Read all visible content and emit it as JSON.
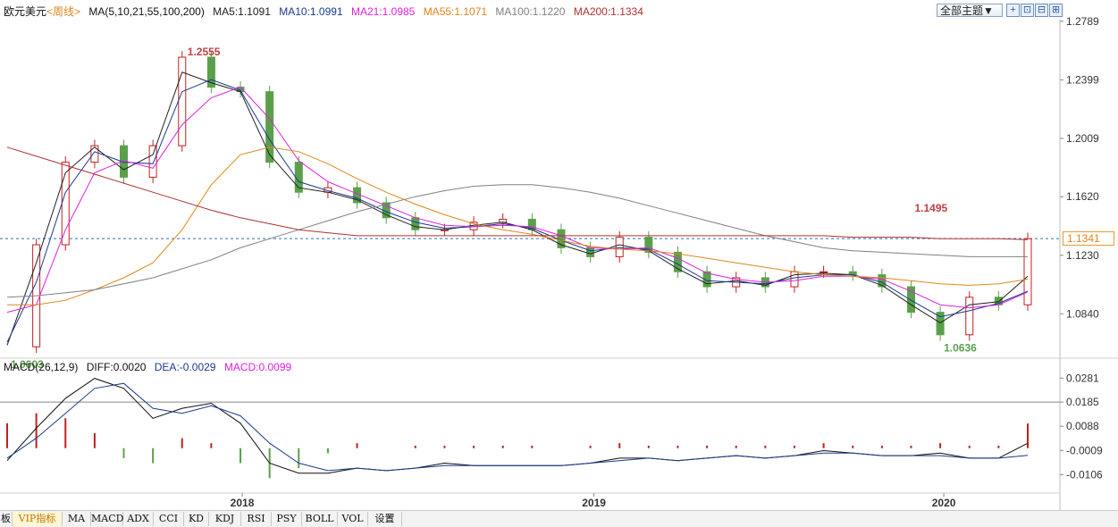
{
  "header": {
    "symbol": "欧元美元",
    "period": "<周线>",
    "ma_params": "MA(5,10,21,55,100,200)",
    "ma5": "MA5:1.1091",
    "ma10": "MA10:1.0991",
    "ma21": "MA21:1.0985",
    "ma55": "MA55:1.1071",
    "ma100": "MA100:1.1220",
    "ma200": "MA200:1.1334"
  },
  "colors": {
    "ma5": "#222222",
    "ma10": "#1a3a8f",
    "ma21": "#e020e0",
    "ma55": "#e0861a",
    "ma100": "#808080",
    "ma200": "#b23030",
    "up": "#c02020",
    "down": "#5aa04a",
    "current": "#2a6fb8"
  },
  "toolbar": {
    "theme_label": "全部主题▼",
    "btn_plus": "+",
    "btn_a": "⊡",
    "btn_b": "⊟",
    "btn_c": "⊞"
  },
  "price_axis": {
    "ticks": [
      "1.2789",
      "1.2399",
      "1.2009",
      "1.1620",
      "1.1230",
      "1.0840"
    ],
    "current": "1.1341"
  },
  "macd_axis": {
    "ticks": [
      "0.0281",
      "0.0185",
      "0.0088",
      "-0.0009",
      "-0.0106"
    ]
  },
  "macd_header": {
    "params": "MACD(26,12,9)",
    "diff": "DIFF:0.0020",
    "dea": "DEA:-0.0029",
    "macd": "MACD:0.0099"
  },
  "annotations": {
    "high": "1.2555",
    "low": "1.0603",
    "peak2": "1.1495",
    "low2": "1.0636"
  },
  "time_axis": [
    "2018",
    "2019",
    "2020"
  ],
  "bottom_tabs": [
    "板",
    "VIP指标",
    "MA",
    "MACD",
    "ADX",
    "CCI",
    "KD",
    "KDJ",
    "RSI",
    "PSY",
    "BOLL",
    "VOL",
    "设置"
  ],
  "chart_data": {
    "type": "line",
    "title": "欧元美元<周线>",
    "ylim": [
      1.055,
      1.28
    ],
    "current_price": 1.1341,
    "x": [
      0,
      5,
      10,
      15,
      20,
      25,
      30,
      35,
      40,
      45,
      50,
      55,
      60,
      65,
      70,
      75,
      80,
      85,
      90,
      95,
      100,
      105,
      110,
      115,
      120,
      125,
      130,
      135,
      140,
      145,
      150,
      155,
      160,
      165,
      170,
      175
    ],
    "close": [
      1.062,
      1.13,
      1.185,
      1.196,
      1.175,
      1.196,
      1.255,
      1.235,
      1.232,
      1.185,
      1.165,
      1.168,
      1.158,
      1.148,
      1.14,
      1.14,
      1.145,
      1.147,
      1.14,
      1.128,
      1.122,
      1.135,
      1.125,
      1.112,
      1.102,
      1.108,
      1.102,
      1.112,
      1.112,
      1.11,
      1.102,
      1.085,
      1.07,
      1.095,
      1.09,
      1.134
    ],
    "series": [
      {
        "name": "MA5",
        "values": [
          1.063,
          1.118,
          1.178,
          1.195,
          1.18,
          1.19,
          1.245,
          1.238,
          1.232,
          1.19,
          1.168,
          1.165,
          1.16,
          1.15,
          1.142,
          1.14,
          1.143,
          1.145,
          1.14,
          1.13,
          1.124,
          1.13,
          1.126,
          1.114,
          1.104,
          1.106,
          1.103,
          1.11,
          1.111,
          1.11,
          1.103,
          1.09,
          1.078,
          1.09,
          1.092,
          1.109
        ]
      },
      {
        "name": "MA10",
        "values": [
          1.065,
          1.105,
          1.165,
          1.192,
          1.185,
          1.184,
          1.232,
          1.24,
          1.233,
          1.2,
          1.172,
          1.166,
          1.161,
          1.152,
          1.145,
          1.141,
          1.142,
          1.144,
          1.141,
          1.133,
          1.126,
          1.128,
          1.127,
          1.117,
          1.106,
          1.105,
          1.104,
          1.108,
          1.11,
          1.11,
          1.105,
          1.093,
          1.082,
          1.086,
          1.091,
          1.099
        ]
      },
      {
        "name": "MA21",
        "values": [
          1.085,
          1.09,
          1.14,
          1.178,
          1.186,
          1.181,
          1.21,
          1.228,
          1.235,
          1.214,
          1.186,
          1.172,
          1.164,
          1.156,
          1.148,
          1.143,
          1.142,
          1.143,
          1.142,
          1.136,
          1.128,
          1.127,
          1.128,
          1.121,
          1.111,
          1.107,
          1.105,
          1.106,
          1.109,
          1.109,
          1.107,
          1.099,
          1.09,
          1.088,
          1.09,
          1.0985
        ]
      },
      {
        "name": "MA55",
        "values": [
          1.09,
          1.09,
          1.093,
          1.1,
          1.108,
          1.118,
          1.14,
          1.17,
          1.19,
          1.195,
          1.192,
          1.184,
          1.174,
          1.165,
          1.157,
          1.15,
          1.144,
          1.14,
          1.137,
          1.133,
          1.129,
          1.127,
          1.126,
          1.124,
          1.121,
          1.118,
          1.115,
          1.112,
          1.11,
          1.109,
          1.108,
          1.106,
          1.104,
          1.103,
          1.104,
          1.1071
        ]
      },
      {
        "name": "MA100",
        "values": [
          1.095,
          1.096,
          1.098,
          1.1,
          1.104,
          1.108,
          1.114,
          1.12,
          1.128,
          1.134,
          1.14,
          1.146,
          1.152,
          1.157,
          1.162,
          1.166,
          1.169,
          1.17,
          1.17,
          1.168,
          1.165,
          1.161,
          1.156,
          1.151,
          1.146,
          1.141,
          1.136,
          1.132,
          1.128,
          1.126,
          1.125,
          1.124,
          1.123,
          1.122,
          1.122,
          1.122
        ]
      },
      {
        "name": "MA200",
        "values": [
          1.195,
          1.189,
          1.183,
          1.177,
          1.171,
          1.165,
          1.159,
          1.153,
          1.148,
          1.144,
          1.14,
          1.138,
          1.136,
          1.136,
          1.136,
          1.136,
          1.136,
          1.136,
          1.136,
          1.136,
          1.136,
          1.136,
          1.136,
          1.136,
          1.136,
          1.136,
          1.136,
          1.136,
          1.136,
          1.135,
          1.135,
          1.135,
          1.134,
          1.134,
          1.134,
          1.1334
        ]
      }
    ],
    "macd": {
      "ylim": [
        -0.018,
        0.03
      ],
      "diff": [
        -0.005,
        0.008,
        0.02,
        0.028,
        0.024,
        0.012,
        0.016,
        0.018,
        0.01,
        -0.006,
        -0.01,
        -0.01,
        -0.008,
        -0.009,
        -0.008,
        -0.006,
        -0.007,
        -0.007,
        -0.007,
        -0.007,
        -0.006,
        -0.004,
        -0.004,
        -0.005,
        -0.004,
        -0.003,
        -0.004,
        -0.003,
        -0.001,
        -0.002,
        -0.003,
        -0.003,
        -0.002,
        -0.004,
        -0.004,
        0.002
      ],
      "dea": [
        -0.004,
        0.004,
        0.014,
        0.024,
        0.026,
        0.016,
        0.014,
        0.017,
        0.013,
        0.002,
        -0.006,
        -0.009,
        -0.008,
        -0.009,
        -0.008,
        -0.007,
        -0.007,
        -0.007,
        -0.007,
        -0.007,
        -0.006,
        -0.005,
        -0.004,
        -0.005,
        -0.004,
        -0.003,
        -0.004,
        -0.003,
        -0.002,
        -0.002,
        -0.003,
        -0.003,
        -0.003,
        -0.004,
        -0.004,
        -0.0029
      ],
      "hist": [
        0.01,
        0.014,
        0.012,
        0.006,
        -0.004,
        -0.006,
        0.004,
        0.002,
        -0.006,
        -0.012,
        -0.008,
        -0.002,
        0.002,
        0.0,
        0.001,
        0.001,
        0.001,
        0.001,
        0.001,
        0.0,
        0.001,
        0.002,
        0.001,
        0.001,
        0.001,
        0.001,
        0.001,
        0.001,
        0.002,
        0.001,
        0.001,
        0.001,
        0.002,
        0.001,
        0.001,
        0.0099
      ]
    }
  }
}
